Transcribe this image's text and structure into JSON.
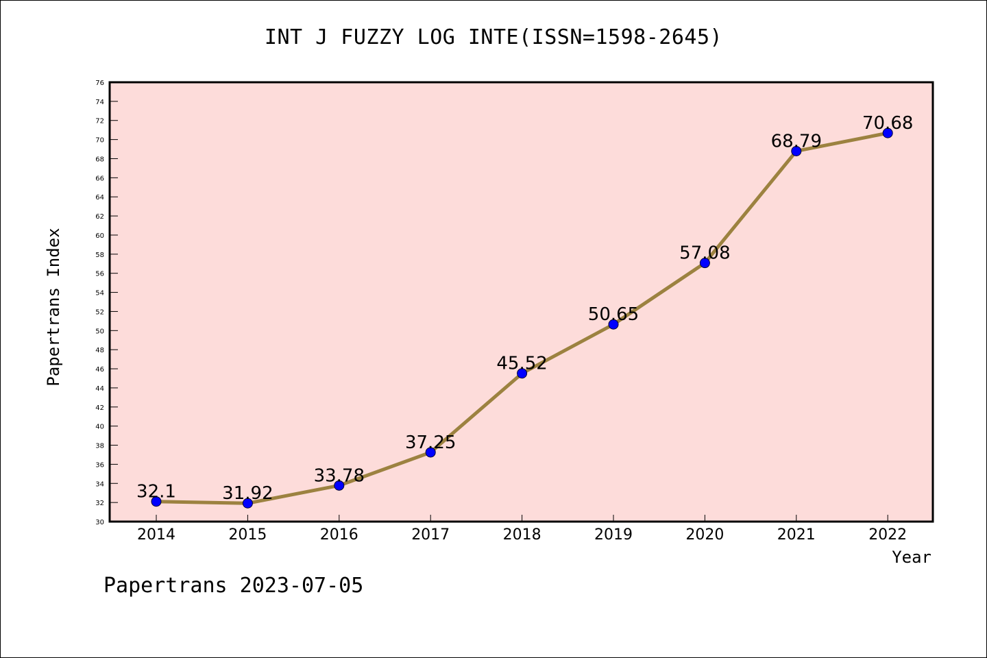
{
  "chart_data": {
    "type": "line",
    "title": "INT J FUZZY LOG INTE(ISSN=1598-2645)",
    "xlabel": "Year",
    "ylabel": "Papertrans Index",
    "categories": [
      "2014",
      "2015",
      "2016",
      "2017",
      "2018",
      "2019",
      "2020",
      "2021",
      "2022"
    ],
    "values": [
      32.1,
      31.92,
      33.78,
      37.25,
      45.52,
      50.65,
      57.08,
      68.79,
      70.68
    ],
    "data_labels": [
      "32.1",
      "31.92",
      "33.78",
      "37.25",
      "45.52",
      "50.65",
      "57.08",
      "68.79",
      "70.68"
    ],
    "ylim": [
      30,
      76
    ],
    "yticks": [
      30,
      32,
      34,
      36,
      38,
      40,
      42,
      44,
      46,
      48,
      50,
      52,
      54,
      56,
      58,
      60,
      62,
      64,
      66,
      68,
      70,
      72,
      74,
      76
    ],
    "grid": false,
    "legend": "none"
  },
  "footer": "Papertrans 2023-07-05",
  "colors": {
    "plot_background": "#FDDCDA",
    "line": "#9C8240",
    "marker": "#0000FF",
    "axis": "#000000"
  }
}
